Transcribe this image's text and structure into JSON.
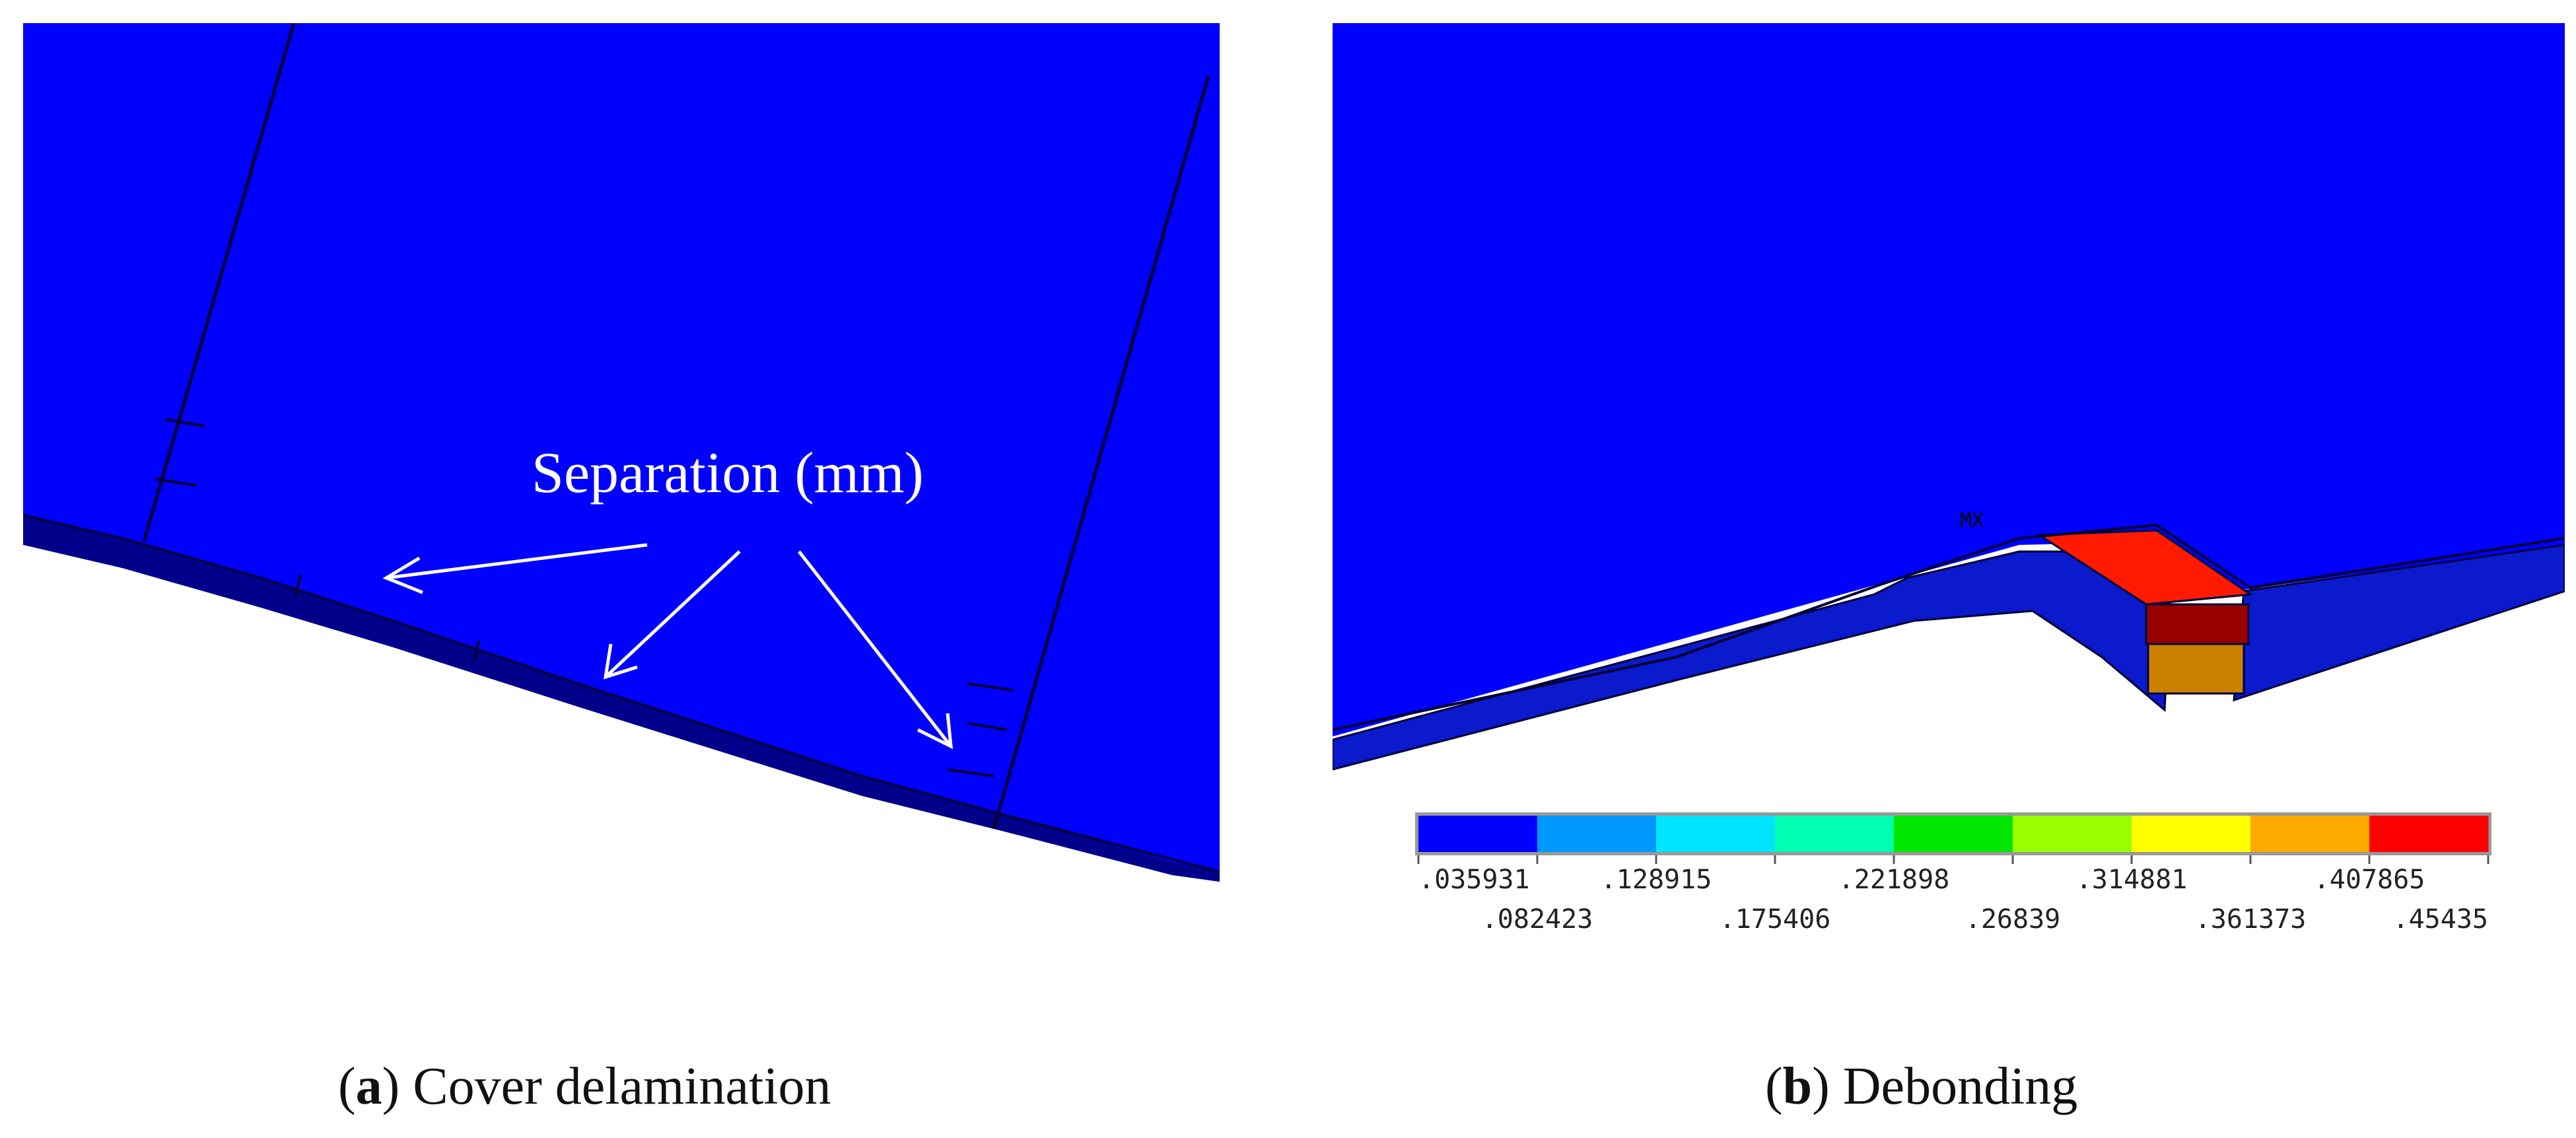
{
  "panel_a": {
    "annotation": "Separation (mm)",
    "caption_letter": "a",
    "caption_text": "Cover delamination"
  },
  "panel_b": {
    "node_label": "MX",
    "caption_letter": "b",
    "caption_text": "Debonding",
    "colorbar": {
      "colors": [
        "#0000ff",
        "#0099ff",
        "#00e5ff",
        "#00ffb3",
        "#00e600",
        "#99ff00",
        "#ffff00",
        "#ffaa00",
        "#ff0000"
      ],
      "top_labels": [
        ".035931",
        ".128915",
        ".221898",
        ".314881",
        ".407865"
      ],
      "bottom_labels": [
        ".082423",
        ".175406",
        ".26839",
        ".361373",
        ".45435"
      ]
    }
  },
  "colors": {
    "model_blue": "#0000ff",
    "model_dark": "#00008b",
    "hot_red": "#ff1a00",
    "dark_red": "#990000",
    "orange_brown": "#cc8000"
  }
}
